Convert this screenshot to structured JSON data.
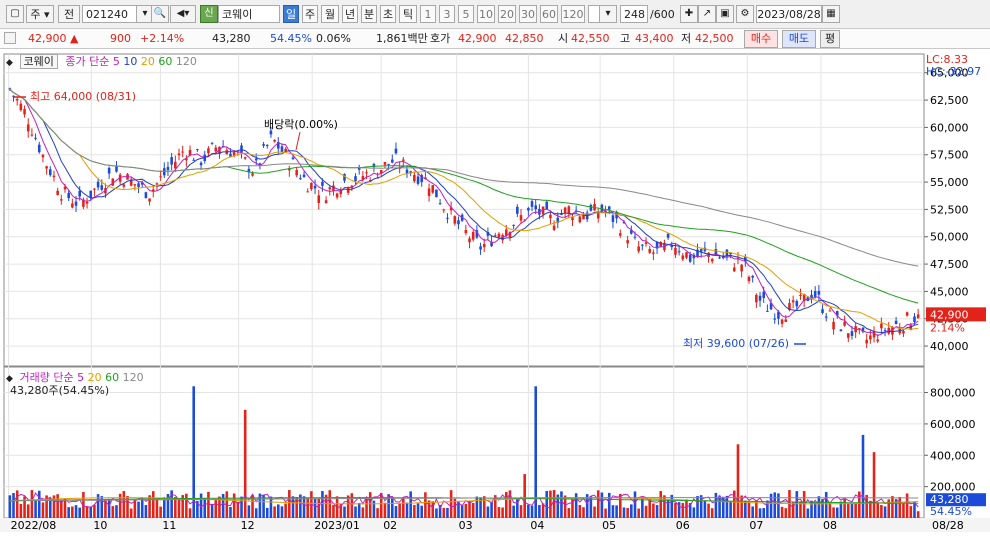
{
  "toolbar": {
    "market_label": "주",
    "prev_label": "전",
    "stock_code": "021240",
    "stock_badge": "신",
    "stock_name": "코웨이",
    "periods": [
      "일",
      "주",
      "월",
      "년",
      "분",
      "초",
      "틱"
    ],
    "intervals": [
      "1",
      "3",
      "5",
      "10",
      "20",
      "30",
      "60",
      "120"
    ],
    "count": "248",
    "total": "/600",
    "date": "2023/08/28"
  },
  "quote": {
    "price": "42,900 ▲",
    "change": "900",
    "change_pct": "+2.14%",
    "prev_volume": "43,280",
    "vol_ratio": "54.45%",
    "turnover": "0.06%",
    "trade_value": "1,861백만",
    "ask_label": "호가",
    "ask": "42,900",
    "bid": "42,850",
    "open_label": "시",
    "open": "42,550",
    "high_label": "고",
    "high": "43,400",
    "low_label": "저",
    "low": "42,500",
    "buy_label": "매수",
    "sell_label": "매도",
    "eval_label": "평"
  },
  "price_legend": {
    "name": "코웨이",
    "type": "종가 단순",
    "ma": [
      "5",
      "10",
      "20",
      "60",
      "120"
    ]
  },
  "volume_legend": {
    "name": "거래량 단순",
    "ma": [
      "5",
      "20",
      "60",
      "120"
    ],
    "info": "43,280주(54.45%)"
  },
  "chart_data": [
    {
      "type": "candlestick",
      "title": "코웨이",
      "x_months": [
        "2022/08",
        "10",
        "11",
        "12",
        "2023/01",
        "02",
        "03",
        "04",
        "05",
        "06",
        "07",
        "08"
      ],
      "y_ticks": [
        "65,000",
        "62,500",
        "60,000",
        "57,500",
        "55,000",
        "52,500",
        "50,000",
        "47,500",
        "45,000",
        "42,500",
        "40,000"
      ],
      "ylim": [
        39000,
        65800
      ],
      "close_path": [
        63500,
        61000,
        57000,
        54000,
        53000,
        54500,
        56000,
        55000,
        54000,
        56000,
        58000,
        57000,
        58500,
        57500,
        56000,
        59000,
        57000,
        55000,
        54000,
        55000,
        55500,
        56000,
        57000,
        56000,
        55000,
        52500,
        50500,
        49000,
        50500,
        51500,
        52500,
        51500,
        52500,
        52000,
        52500,
        51000,
        49000,
        48500,
        49500,
        48000,
        48500,
        48000,
        47500,
        44000,
        43000,
        43500,
        45000,
        42500,
        41500,
        40500,
        41500,
        42000,
        42900
      ],
      "ma": [
        {
          "name": "5",
          "color": "#c020c0"
        },
        {
          "name": "10",
          "color": "#2040c0"
        },
        {
          "name": "20",
          "color": "#e0a000"
        },
        {
          "name": "60",
          "color": "#20a020"
        },
        {
          "name": "120",
          "color": "#888888"
        }
      ],
      "annotations": {
        "high": "최고 64,000 (08/31)",
        "low": "최저 39,600 (07/26)",
        "dividend": "배당락(0.00%)"
      },
      "right_labels": {
        "lc": "LC:8.33",
        "hc": "HC:-32.97",
        "last": "42,900",
        "last_pct": "2.14%"
      }
    },
    {
      "type": "bar",
      "title": "거래량",
      "y_ticks": [
        "800,000",
        "600,000",
        "400,000",
        "200,000"
      ],
      "ylim": [
        0,
        880000
      ],
      "last": "43,280",
      "last_pct": "54.45%",
      "date_marker": "08/28",
      "spikes": [
        {
          "pos": 0.203,
          "value": 840000
        },
        {
          "pos": 0.26,
          "value": 690000
        },
        {
          "pos": 0.565,
          "value": 280000
        },
        {
          "pos": 0.58,
          "value": 840000
        },
        {
          "pos": 0.8,
          "value": 470000
        },
        {
          "pos": 0.94,
          "value": 530000
        },
        {
          "pos": 0.95,
          "value": 420000
        }
      ],
      "colors": {
        "up": "#e2231a",
        "down": "#1b4bd8"
      }
    }
  ]
}
